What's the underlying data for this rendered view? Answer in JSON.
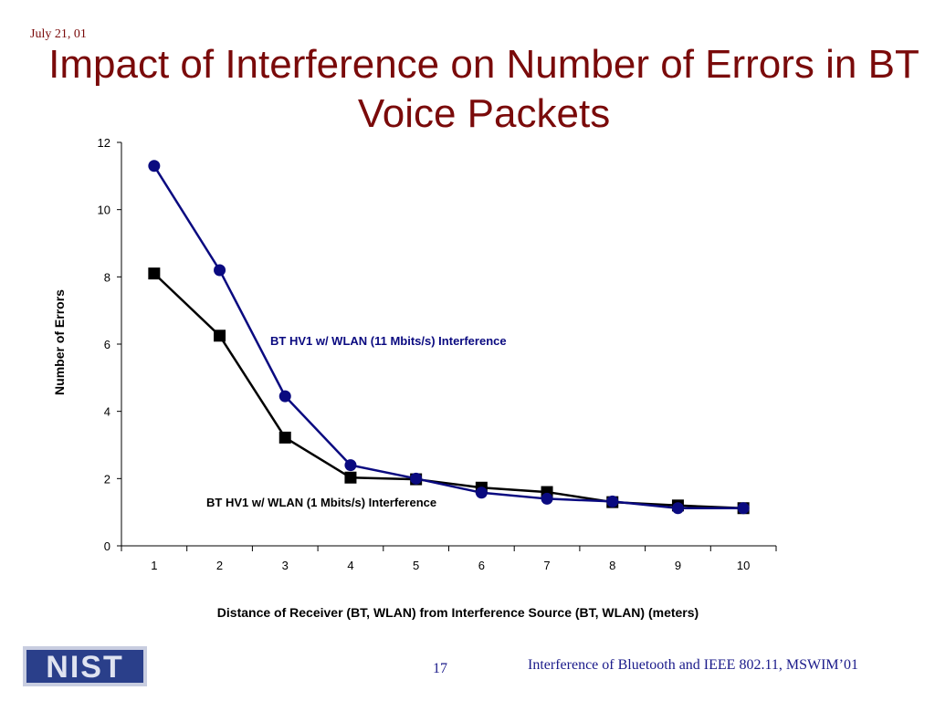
{
  "slide": {
    "date": "July 21, 01",
    "title": "Impact of Interference on Number of Errors in BT Voice Packets",
    "page_number": "17",
    "footer": "Interference of Bluetooth and IEEE 802.11, MSWIM’01",
    "logo_text": "NIST"
  },
  "chart_data": {
    "type": "line",
    "x": [
      1,
      2,
      3,
      4,
      5,
      6,
      7,
      8,
      9,
      10
    ],
    "xlabel": "Distance of Receiver (BT, WLAN) from Interference Source (BT, WLAN)  (meters)",
    "ylabel": "Number of Errors",
    "ylim": [
      0,
      12
    ],
    "yticks": [
      0,
      2,
      4,
      6,
      8,
      10,
      12
    ],
    "grid": false,
    "legend": "none",
    "series": [
      {
        "name": "BT HV1 w/ WLAN (11 Mbits/s) Interference",
        "marker": "circle",
        "color": "#0a0a80",
        "values": [
          11.3,
          8.2,
          4.45,
          2.4,
          2.0,
          1.58,
          1.4,
          1.32,
          1.12,
          1.12
        ]
      },
      {
        "name": "BT HV1 w/ WLAN (1 Mbits/s) Interference",
        "marker": "square",
        "color": "#000000",
        "values": [
          8.1,
          6.25,
          3.22,
          2.03,
          1.98,
          1.73,
          1.6,
          1.3,
          1.2,
          1.12
        ]
      }
    ]
  }
}
